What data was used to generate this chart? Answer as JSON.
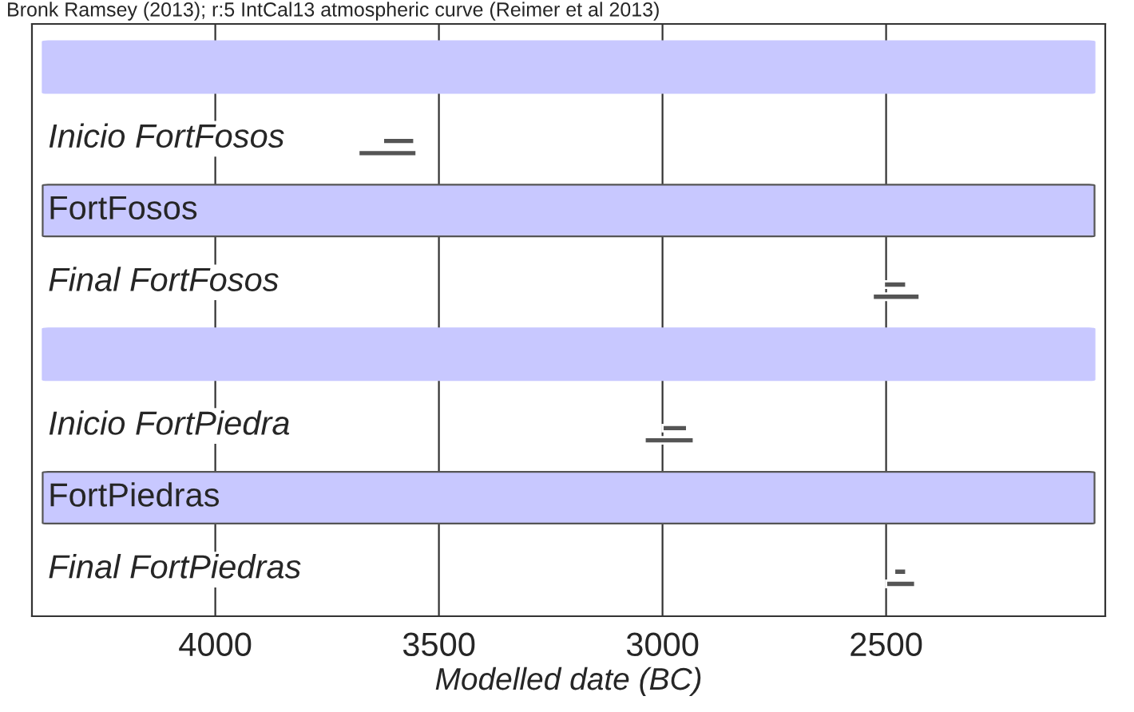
{
  "chart_data": {
    "type": "bar",
    "orientation": "horizontal",
    "title": "Bronk Ramsey (2013); r:5 IntCal13 atmospheric curve (Reimer et al 2013)",
    "xlabel": "Modelled date (BC)",
    "categories": [
      null,
      "Inicio FortFosos",
      "FortFosos",
      "Final FortFosos",
      null,
      "Inicio FortPiedra",
      "FortPiedras",
      "Final FortPiedras"
    ],
    "series": [
      {
        "color": "#555555",
        "base": [
          null,
          3555,
          null,
          2455,
          null,
          2945,
          null,
          2455
        ],
        "values": [
          null,
          70,
          null,
          50,
          null,
          55,
          null,
          27
        ]
      },
      {
        "color": "#555555",
        "base": [
          null,
          3550,
          null,
          2425,
          null,
          2930,
          null,
          2435
        ],
        "values": [
          null,
          130,
          null,
          105,
          null,
          110,
          null,
          65
        ]
      }
    ],
    "xlim": [
      4410,
      2010
    ],
    "xticks": [
      4000,
      3500,
      3000,
      2500
    ],
    "grid": "x"
  }
}
